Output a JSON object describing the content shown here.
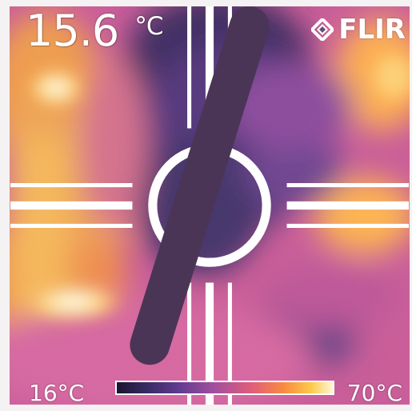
{
  "display": {
    "temperature_value": "15.6",
    "temperature_unit": "°C"
  },
  "brand": {
    "logo_text": "FLIR"
  },
  "scale": {
    "low_label": "16°C",
    "high_label": "70°C",
    "palette": [
      "#1b1330",
      "#34285e",
      "#5f3a8e",
      "#a14fa0",
      "#df5c7b",
      "#f88a42",
      "#fdc94a",
      "#fff7d3"
    ]
  },
  "icons": {
    "logo": "flir-logo-icon",
    "crosshair": "crosshair-icon"
  }
}
